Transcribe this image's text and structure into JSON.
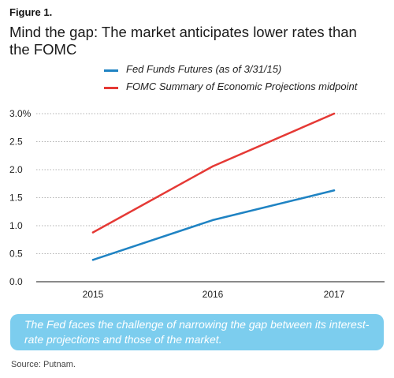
{
  "figure_label": "Figure 1.",
  "title": "Mind the gap: The market anticipates lower rates than the FOMC",
  "callout": "The Fed faces the challenge of narrowing the gap between its interest-rate projections and those of the market.",
  "source": "Source: Putnam.",
  "colors": {
    "blue": "#1f83c3",
    "red": "#e53935",
    "grid": "#9a9a9a",
    "callout_bg": "#7ccdee"
  },
  "chart_data": {
    "type": "line",
    "x": [
      "2015",
      "2016",
      "2017"
    ],
    "series": [
      {
        "name": "Fed Funds Futures (as of 3/31/15)",
        "color": "#1f83c3",
        "values": [
          0.39,
          1.1,
          1.63
        ]
      },
      {
        "name": "FOMC Summary of Economic Projections midpoint",
        "color": "#e53935",
        "values": [
          0.88,
          2.06,
          3.0
        ]
      }
    ],
    "yticks": [
      "0.0",
      "0.5",
      "1.0",
      "1.5",
      "2.0",
      "2.5",
      "3.0%"
    ],
    "ylim": [
      0,
      3.0
    ],
    "grid": true,
    "legend": "top"
  }
}
